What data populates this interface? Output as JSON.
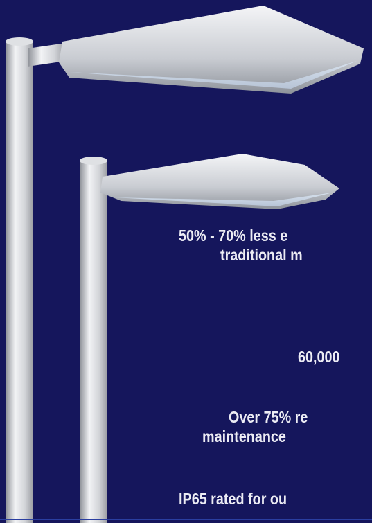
{
  "features": [
    {
      "lines": [
        "50% - 70% less e",
        "traditional m"
      ]
    },
    {
      "lines": [
        "60,000"
      ]
    },
    {
      "lines": [
        "Over 75% re",
        "maintenance"
      ]
    },
    {
      "lines": [
        "IP65 rated for ou"
      ]
    }
  ]
}
